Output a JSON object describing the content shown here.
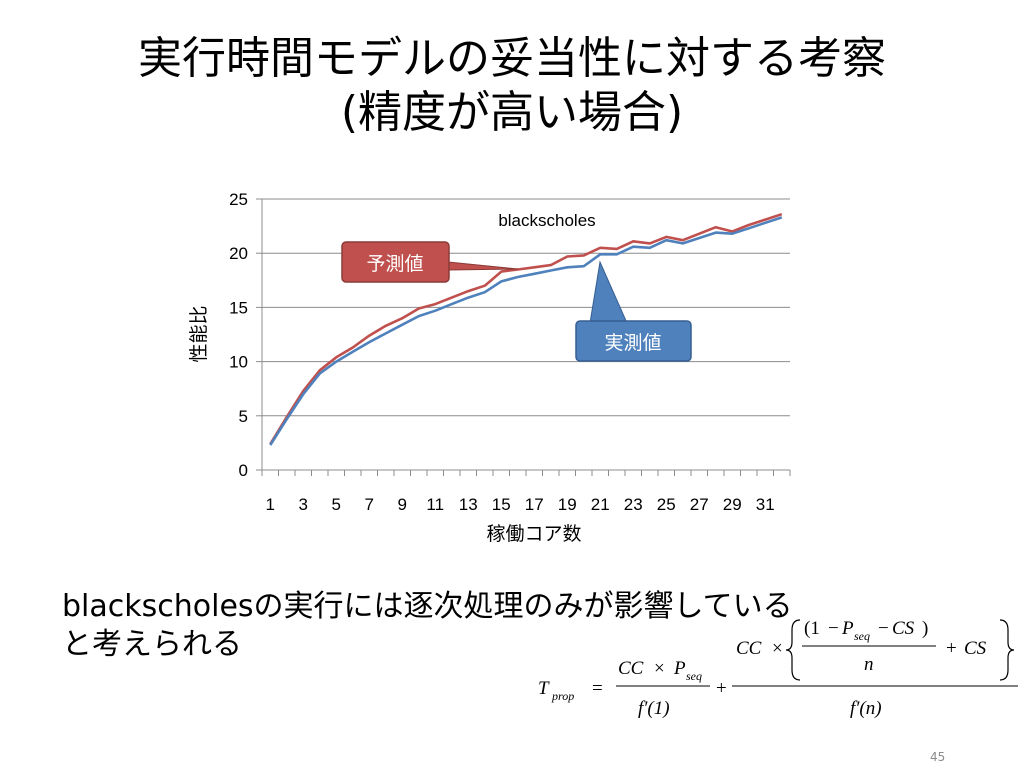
{
  "slide": {
    "title_line1": "実行時間モデルの妥当性に対する考察",
    "title_line2": "(精度が高い場合)",
    "body_line1": "blackscholesの実行には逐次処理のみが影響している",
    "body_line2": "と考えられる",
    "page_number": "45"
  },
  "chart_data": {
    "type": "line",
    "title": "blackscholes",
    "xlabel": "稼働コア数",
    "ylabel": "性能比",
    "ylim": [
      0,
      25
    ],
    "yticks": [
      0,
      5,
      10,
      15,
      20,
      25
    ],
    "x": [
      1,
      2,
      3,
      4,
      5,
      6,
      7,
      8,
      9,
      10,
      11,
      12,
      13,
      14,
      15,
      16,
      17,
      18,
      19,
      20,
      21,
      22,
      23,
      24,
      25,
      26,
      27,
      28,
      29,
      30,
      31,
      32
    ],
    "xtick_labels": [
      "1",
      "3",
      "5",
      "7",
      "9",
      "11",
      "13",
      "15",
      "17",
      "19",
      "21",
      "23",
      "25",
      "27",
      "29",
      "31"
    ],
    "grid": true,
    "series": [
      {
        "name": "予測値",
        "color": "#c0504d",
        "values": [
          2.4,
          4.9,
          7.3,
          9.2,
          10.4,
          11.3,
          12.4,
          13.3,
          14.0,
          14.9,
          15.3,
          15.9,
          16.5,
          17.0,
          18.3,
          18.5,
          18.7,
          18.9,
          19.7,
          19.8,
          20.5,
          20.4,
          21.1,
          20.9,
          21.5,
          21.2,
          21.8,
          22.4,
          22.0,
          22.6,
          23.1,
          23.6
        ]
      },
      {
        "name": "実測値",
        "color": "#4f81bd",
        "values": [
          2.3,
          4.7,
          7.0,
          8.9,
          10.0,
          10.9,
          11.8,
          12.6,
          13.4,
          14.2,
          14.7,
          15.3,
          15.9,
          16.4,
          17.4,
          17.8,
          18.1,
          18.4,
          18.7,
          18.8,
          19.9,
          19.9,
          20.6,
          20.5,
          21.2,
          20.9,
          21.4,
          21.9,
          21.8,
          22.3,
          22.8,
          23.3
        ]
      }
    ],
    "callouts": [
      {
        "label": "予測値",
        "fill": "#c0504d"
      },
      {
        "label": "実測値",
        "fill": "#4f81bd"
      }
    ]
  },
  "formula": {
    "lhs": "T",
    "lhs_sub": "prop",
    "eq": "=",
    "t1_num_a": "CC",
    "times": "×",
    "t1_num_p": "P",
    "t1_num_p_sub": "seq",
    "t1_den": "f′(1)",
    "plus": "+",
    "t2_cc": "CC",
    "inner_num_open": "(1",
    "minus": "−",
    "inner_p": "P",
    "inner_p_sub": "seq",
    "inner_cs": "CS",
    "inner_close": ")",
    "inner_den": "n",
    "plus_cs": "+",
    "cs": "CS",
    "t2_den": "f′(n)"
  }
}
